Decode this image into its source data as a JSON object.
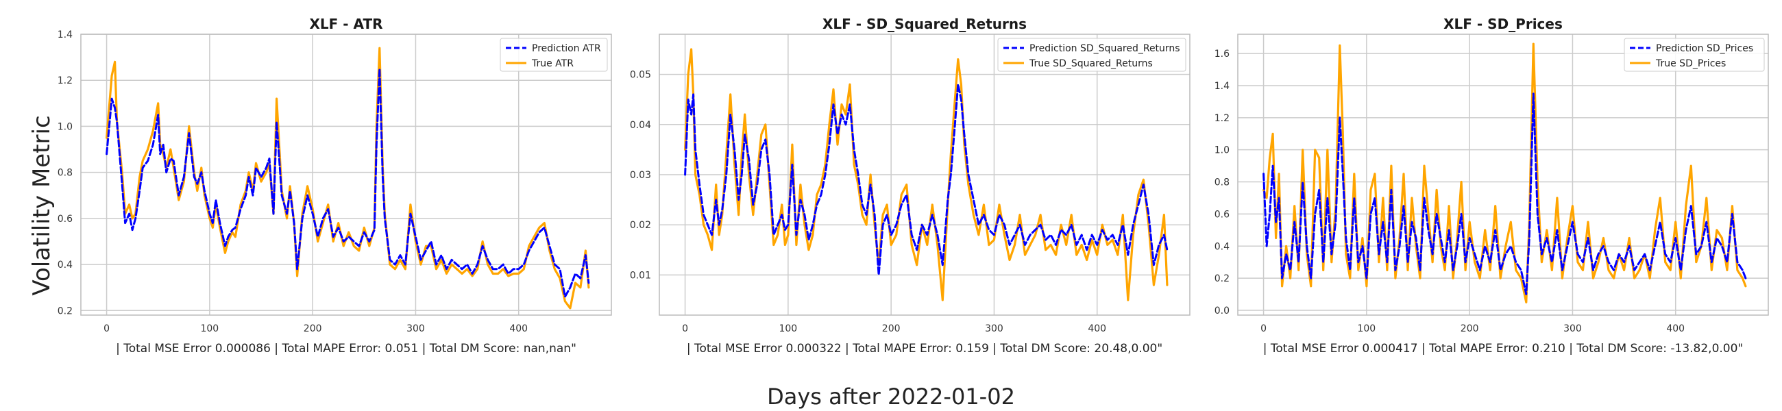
{
  "figure": {
    "ylabel": "Volatility Metric",
    "xlabel": "Days after 2022-01-02"
  },
  "colors": {
    "prediction": "#0000ff",
    "true": "#ffa500",
    "grid": "#cccccc",
    "axes_edge": "#bbbbbb"
  },
  "panels": [
    {
      "title": "XLF - ATR",
      "metrics": "| Total MSE Error 0.000086 | Total MAPE Error: 0.051 | Total DM Score: nan,nan\"",
      "legend": [
        "Prediction ATR",
        "True ATR"
      ],
      "yticks": [
        "0.2",
        "0.4",
        "0.6",
        "0.8",
        "1.0",
        "1.2",
        "1.4"
      ],
      "xticks": [
        "0",
        "100",
        "200",
        "300",
        "400"
      ]
    },
    {
      "title": "XLF - SD_Squared_Returns",
      "metrics": "| Total MSE Error 0.000322 | Total MAPE Error: 0.159 | Total DM Score: 20.48,0.00\"",
      "legend": [
        "Prediction SD_Squared_Returns",
        "True SD_Squared_Returns"
      ],
      "yticks": [
        "0.01",
        "0.02",
        "0.03",
        "0.04",
        "0.05"
      ],
      "xticks": [
        "0",
        "100",
        "200",
        "300",
        "400"
      ]
    },
    {
      "title": "XLF - SD_Prices",
      "metrics": "| Total MSE Error 0.000417 | Total MAPE Error: 0.210 | Total DM Score: -13.82,0.00\"",
      "legend": [
        "Prediction SD_Prices",
        "True SD_Prices"
      ],
      "yticks": [
        "0.0",
        "0.2",
        "0.4",
        "0.6",
        "0.8",
        "1.0",
        "1.2",
        "1.4",
        "1.6"
      ],
      "xticks": [
        "0",
        "100",
        "200",
        "300",
        "400"
      ]
    }
  ],
  "chart_data": [
    {
      "type": "line",
      "title": "XLF - ATR",
      "xlabel": "| Total MSE Error 0.000086 | Total MAPE Error: 0.051 | Total DM Score: nan,nan\"",
      "ylabel": "Volatility Metric",
      "xlim": [
        -25,
        490
      ],
      "ylim": [
        0.18,
        1.4
      ],
      "grid": true,
      "legend_position": "top-right",
      "x": [
        0,
        5,
        8,
        10,
        15,
        18,
        22,
        25,
        28,
        32,
        35,
        40,
        45,
        50,
        52,
        55,
        58,
        62,
        65,
        70,
        75,
        80,
        85,
        88,
        92,
        95,
        100,
        103,
        106,
        110,
        115,
        118,
        122,
        125,
        130,
        135,
        138,
        142,
        145,
        150,
        155,
        158,
        162,
        165,
        170,
        175,
        178,
        182,
        185,
        190,
        195,
        200,
        205,
        210,
        215,
        220,
        225,
        230,
        235,
        240,
        245,
        250,
        255,
        260,
        262,
        265,
        268,
        270,
        275,
        280,
        285,
        290,
        295,
        300,
        305,
        310,
        315,
        320,
        325,
        330,
        335,
        340,
        345,
        350,
        355,
        360,
        365,
        370,
        375,
        380,
        385,
        390,
        395,
        400,
        405,
        410,
        415,
        420,
        425,
        430,
        435,
        440,
        445,
        450,
        455,
        460,
        465,
        468
      ],
      "series": [
        {
          "name": "Prediction ATR",
          "style": "dashed",
          "values": [
            0.88,
            1.12,
            1.08,
            1.02,
            0.75,
            0.58,
            0.62,
            0.55,
            0.6,
            0.72,
            0.82,
            0.85,
            0.92,
            1.05,
            0.88,
            0.92,
            0.8,
            0.86,
            0.85,
            0.7,
            0.78,
            0.97,
            0.78,
            0.75,
            0.8,
            0.72,
            0.62,
            0.58,
            0.68,
            0.58,
            0.48,
            0.52,
            0.55,
            0.56,
            0.64,
            0.7,
            0.78,
            0.7,
            0.82,
            0.78,
            0.82,
            0.86,
            0.62,
            1.02,
            0.7,
            0.62,
            0.72,
            0.58,
            0.38,
            0.6,
            0.7,
            0.62,
            0.52,
            0.6,
            0.64,
            0.52,
            0.56,
            0.5,
            0.52,
            0.5,
            0.48,
            0.54,
            0.5,
            0.55,
            0.92,
            1.25,
            0.78,
            0.6,
            0.42,
            0.4,
            0.44,
            0.4,
            0.62,
            0.52,
            0.42,
            0.46,
            0.5,
            0.4,
            0.44,
            0.38,
            0.42,
            0.4,
            0.38,
            0.4,
            0.36,
            0.4,
            0.48,
            0.42,
            0.38,
            0.38,
            0.4,
            0.36,
            0.38,
            0.38,
            0.4,
            0.46,
            0.5,
            0.54,
            0.56,
            0.48,
            0.4,
            0.38,
            0.26,
            0.3,
            0.36,
            0.34,
            0.44,
            0.32
          ]
        },
        {
          "name": "True ATR",
          "style": "solid",
          "values": [
            0.95,
            1.22,
            1.28,
            1.02,
            0.8,
            0.62,
            0.66,
            0.6,
            0.62,
            0.78,
            0.85,
            0.9,
            0.98,
            1.1,
            0.92,
            0.88,
            0.82,
            0.9,
            0.82,
            0.68,
            0.76,
            1.0,
            0.8,
            0.72,
            0.82,
            0.7,
            0.6,
            0.56,
            0.66,
            0.56,
            0.45,
            0.5,
            0.54,
            0.52,
            0.66,
            0.72,
            0.8,
            0.72,
            0.84,
            0.76,
            0.8,
            0.84,
            0.62,
            1.12,
            0.72,
            0.6,
            0.74,
            0.58,
            0.35,
            0.62,
            0.74,
            0.64,
            0.5,
            0.58,
            0.66,
            0.5,
            0.58,
            0.48,
            0.54,
            0.48,
            0.46,
            0.56,
            0.48,
            0.56,
            1.0,
            1.34,
            0.82,
            0.62,
            0.4,
            0.38,
            0.42,
            0.38,
            0.66,
            0.5,
            0.4,
            0.48,
            0.48,
            0.38,
            0.42,
            0.36,
            0.4,
            0.38,
            0.36,
            0.38,
            0.35,
            0.38,
            0.5,
            0.4,
            0.36,
            0.36,
            0.38,
            0.35,
            0.36,
            0.36,
            0.38,
            0.48,
            0.52,
            0.56,
            0.58,
            0.46,
            0.38,
            0.34,
            0.24,
            0.21,
            0.32,
            0.3,
            0.46,
            0.3
          ]
        }
      ]
    },
    {
      "type": "line",
      "title": "XLF - SD_Squared_Returns",
      "xlabel": "| Total MSE Error 0.000322 | Total MAPE Error: 0.159 | Total DM Score: 20.48,0.00\"",
      "xlim": [
        -25,
        490
      ],
      "ylim": [
        0.002,
        0.058
      ],
      "grid": true,
      "legend_position": "top-right",
      "x": [
        0,
        3,
        6,
        8,
        10,
        14,
        18,
        22,
        26,
        30,
        33,
        36,
        40,
        44,
        48,
        52,
        55,
        58,
        62,
        66,
        70,
        74,
        78,
        82,
        86,
        90,
        94,
        97,
        100,
        104,
        108,
        112,
        116,
        120,
        124,
        128,
        132,
        136,
        140,
        144,
        148,
        152,
        156,
        160,
        164,
        168,
        172,
        176,
        180,
        184,
        188,
        192,
        196,
        200,
        205,
        210,
        215,
        220,
        225,
        230,
        235,
        240,
        245,
        250,
        255,
        258,
        262,
        265,
        268,
        271,
        275,
        280,
        285,
        290,
        295,
        300,
        305,
        310,
        315,
        320,
        325,
        330,
        335,
        340,
        345,
        350,
        355,
        360,
        365,
        370,
        375,
        380,
        385,
        390,
        395,
        400,
        405,
        410,
        415,
        420,
        425,
        430,
        435,
        440,
        445,
        450,
        455,
        460,
        465,
        468
      ],
      "series": [
        {
          "name": "Prediction SD_Squared_Returns",
          "style": "dashed",
          "values": [
            0.03,
            0.045,
            0.042,
            0.046,
            0.035,
            0.028,
            0.022,
            0.02,
            0.018,
            0.025,
            0.02,
            0.023,
            0.03,
            0.042,
            0.035,
            0.025,
            0.03,
            0.038,
            0.033,
            0.024,
            0.028,
            0.035,
            0.037,
            0.03,
            0.018,
            0.02,
            0.022,
            0.019,
            0.02,
            0.032,
            0.018,
            0.025,
            0.022,
            0.017,
            0.02,
            0.024,
            0.026,
            0.03,
            0.036,
            0.044,
            0.038,
            0.042,
            0.04,
            0.044,
            0.035,
            0.03,
            0.024,
            0.022,
            0.028,
            0.022,
            0.01,
            0.02,
            0.022,
            0.018,
            0.02,
            0.024,
            0.026,
            0.018,
            0.015,
            0.02,
            0.018,
            0.022,
            0.018,
            0.012,
            0.025,
            0.03,
            0.04,
            0.048,
            0.045,
            0.038,
            0.03,
            0.025,
            0.02,
            0.022,
            0.019,
            0.018,
            0.022,
            0.02,
            0.016,
            0.018,
            0.02,
            0.016,
            0.018,
            0.019,
            0.02,
            0.017,
            0.018,
            0.016,
            0.019,
            0.018,
            0.02,
            0.016,
            0.018,
            0.015,
            0.018,
            0.016,
            0.019,
            0.017,
            0.018,
            0.016,
            0.02,
            0.014,
            0.02,
            0.024,
            0.028,
            0.022,
            0.012,
            0.016,
            0.018,
            0.015
          ]
        },
        {
          "name": "True SD_Squared_Returns",
          "style": "solid",
          "values": [
            0.035,
            0.05,
            0.055,
            0.046,
            0.03,
            0.026,
            0.02,
            0.018,
            0.015,
            0.028,
            0.018,
            0.022,
            0.034,
            0.046,
            0.032,
            0.022,
            0.034,
            0.042,
            0.03,
            0.022,
            0.03,
            0.038,
            0.04,
            0.028,
            0.016,
            0.018,
            0.024,
            0.016,
            0.018,
            0.036,
            0.016,
            0.028,
            0.02,
            0.015,
            0.018,
            0.026,
            0.028,
            0.032,
            0.04,
            0.047,
            0.036,
            0.044,
            0.042,
            0.048,
            0.032,
            0.028,
            0.022,
            0.02,
            0.03,
            0.02,
            0.012,
            0.022,
            0.024,
            0.016,
            0.018,
            0.026,
            0.028,
            0.016,
            0.012,
            0.02,
            0.016,
            0.024,
            0.016,
            0.005,
            0.024,
            0.034,
            0.045,
            0.053,
            0.048,
            0.036,
            0.028,
            0.022,
            0.018,
            0.024,
            0.016,
            0.017,
            0.024,
            0.018,
            0.013,
            0.016,
            0.022,
            0.014,
            0.016,
            0.018,
            0.022,
            0.015,
            0.016,
            0.014,
            0.02,
            0.016,
            0.022,
            0.014,
            0.016,
            0.013,
            0.017,
            0.014,
            0.02,
            0.016,
            0.017,
            0.014,
            0.022,
            0.005,
            0.018,
            0.026,
            0.029,
            0.02,
            0.008,
            0.014,
            0.022,
            0.008
          ]
        }
      ]
    },
    {
      "type": "line",
      "title": "XLF - SD_Prices",
      "xlabel": "| Total MSE Error 0.000417 | Total MAPE Error: 0.210 | Total DM Score: -13.82,0.00\"",
      "xlim": [
        -25,
        490
      ],
      "ylim": [
        -0.03,
        1.72
      ],
      "grid": true,
      "legend_position": "top-right",
      "x": [
        0,
        3,
        6,
        9,
        12,
        15,
        18,
        22,
        26,
        30,
        34,
        38,
        42,
        46,
        50,
        54,
        58,
        62,
        66,
        70,
        74,
        77,
        80,
        84,
        88,
        92,
        96,
        100,
        104,
        108,
        112,
        116,
        120,
        124,
        128,
        132,
        136,
        140,
        144,
        148,
        152,
        156,
        160,
        164,
        168,
        172,
        176,
        180,
        184,
        188,
        192,
        196,
        200,
        205,
        210,
        215,
        220,
        225,
        230,
        235,
        240,
        245,
        250,
        255,
        258,
        262,
        266,
        270,
        275,
        280,
        285,
        290,
        295,
        300,
        305,
        310,
        315,
        320,
        325,
        330,
        335,
        340,
        345,
        350,
        355,
        360,
        365,
        370,
        375,
        380,
        385,
        390,
        395,
        400,
        405,
        410,
        415,
        420,
        425,
        430,
        435,
        440,
        445,
        450,
        455,
        460,
        465,
        468
      ],
      "series": [
        {
          "name": "Prediction SD_Prices",
          "style": "dashed",
          "values": [
            0.85,
            0.4,
            0.6,
            0.9,
            0.55,
            0.7,
            0.2,
            0.35,
            0.25,
            0.55,
            0.3,
            0.8,
            0.4,
            0.2,
            0.6,
            0.75,
            0.3,
            0.7,
            0.35,
            0.55,
            1.2,
            0.85,
            0.45,
            0.25,
            0.7,
            0.3,
            0.4,
            0.2,
            0.6,
            0.7,
            0.35,
            0.55,
            0.3,
            0.75,
            0.25,
            0.4,
            0.65,
            0.3,
            0.55,
            0.45,
            0.25,
            0.7,
            0.5,
            0.35,
            0.6,
            0.45,
            0.3,
            0.5,
            0.25,
            0.4,
            0.6,
            0.3,
            0.45,
            0.35,
            0.25,
            0.4,
            0.3,
            0.5,
            0.25,
            0.35,
            0.4,
            0.3,
            0.25,
            0.1,
            0.45,
            1.35,
            0.6,
            0.35,
            0.45,
            0.3,
            0.5,
            0.25,
            0.4,
            0.55,
            0.35,
            0.3,
            0.45,
            0.25,
            0.35,
            0.4,
            0.3,
            0.25,
            0.35,
            0.3,
            0.4,
            0.25,
            0.3,
            0.35,
            0.25,
            0.4,
            0.55,
            0.35,
            0.3,
            0.45,
            0.25,
            0.5,
            0.65,
            0.35,
            0.4,
            0.55,
            0.3,
            0.45,
            0.4,
            0.3,
            0.6,
            0.3,
            0.25,
            0.2
          ]
        },
        {
          "name": "True SD_Prices",
          "style": "solid",
          "values": [
            0.75,
            0.7,
            0.95,
            1.1,
            0.45,
            0.85,
            0.15,
            0.4,
            0.2,
            0.65,
            0.25,
            1.0,
            0.35,
            0.15,
            1.0,
            0.95,
            0.25,
            1.0,
            0.3,
            0.65,
            1.65,
            1.1,
            0.35,
            0.2,
            0.85,
            0.25,
            0.45,
            0.15,
            0.75,
            0.85,
            0.3,
            0.7,
            0.25,
            0.9,
            0.2,
            0.45,
            0.85,
            0.25,
            0.7,
            0.4,
            0.2,
            0.9,
            0.6,
            0.3,
            0.75,
            0.4,
            0.25,
            0.65,
            0.2,
            0.45,
            0.8,
            0.25,
            0.55,
            0.3,
            0.2,
            0.5,
            0.25,
            0.65,
            0.2,
            0.4,
            0.55,
            0.25,
            0.2,
            0.05,
            0.55,
            1.66,
            0.8,
            0.3,
            0.5,
            0.25,
            0.7,
            0.2,
            0.45,
            0.65,
            0.3,
            0.25,
            0.55,
            0.2,
            0.3,
            0.45,
            0.25,
            0.2,
            0.35,
            0.25,
            0.45,
            0.2,
            0.25,
            0.35,
            0.2,
            0.5,
            0.7,
            0.3,
            0.25,
            0.55,
            0.2,
            0.65,
            0.9,
            0.3,
            0.4,
            0.7,
            0.25,
            0.5,
            0.45,
            0.25,
            0.65,
            0.25,
            0.2,
            0.15
          ]
        }
      ]
    }
  ]
}
